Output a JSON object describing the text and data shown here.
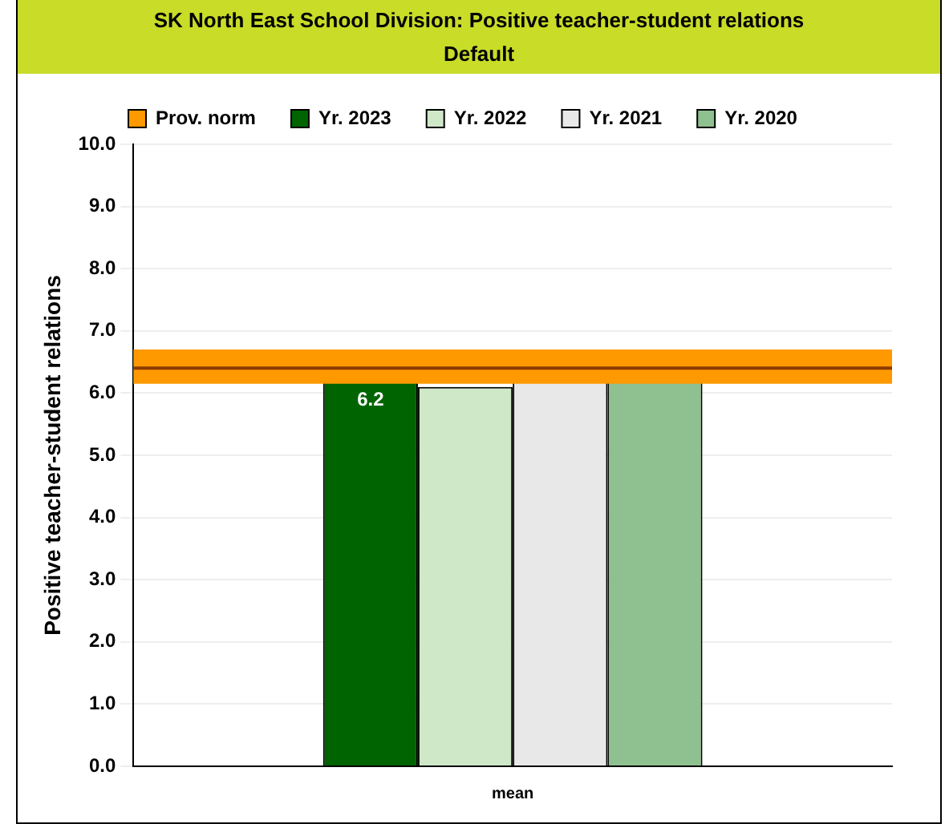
{
  "chart_data": {
    "type": "bar",
    "title": "SK North East School Division: Positive teacher-student relations",
    "subtitle": "Default",
    "ylabel": "Positive teacher-student relations",
    "categories": [
      "mean"
    ],
    "series": [
      {
        "name": "Yr. 2023",
        "color": "#006400",
        "values": [
          6.2
        ],
        "value_labels": [
          "6.2"
        ]
      },
      {
        "name": "Yr. 2022",
        "color": "#cfe8c8",
        "values": [
          6.1
        ]
      },
      {
        "name": "Yr. 2021",
        "color": "#e8e8e8",
        "values": [
          6.2
        ]
      },
      {
        "name": "Yr. 2020",
        "color": "#8fc08f",
        "values": [
          6.2
        ]
      }
    ],
    "ref_lines": [
      {
        "axis": "y",
        "value": 6.4,
        "color": "#8b3a00"
      }
    ],
    "bands": [
      {
        "axis": "y",
        "from": 6.15,
        "to": 6.7,
        "label": "Prov. norm",
        "color": "#ff9900"
      }
    ],
    "ylim": [
      0,
      10
    ],
    "yticks": [
      {
        "value": 0,
        "label": "0.0"
      },
      {
        "value": 1,
        "label": "1.0"
      },
      {
        "value": 2,
        "label": "2.0"
      },
      {
        "value": 3,
        "label": "3.0"
      },
      {
        "value": 4,
        "label": "4.0"
      },
      {
        "value": 5,
        "label": "5.0"
      },
      {
        "value": 6,
        "label": "6.0"
      },
      {
        "value": 7,
        "label": "7.0"
      },
      {
        "value": 8,
        "label": "8.0"
      },
      {
        "value": 9,
        "label": "9.0"
      },
      {
        "value": 10,
        "label": "10.0"
      }
    ],
    "grid": "y",
    "legend": "top"
  }
}
